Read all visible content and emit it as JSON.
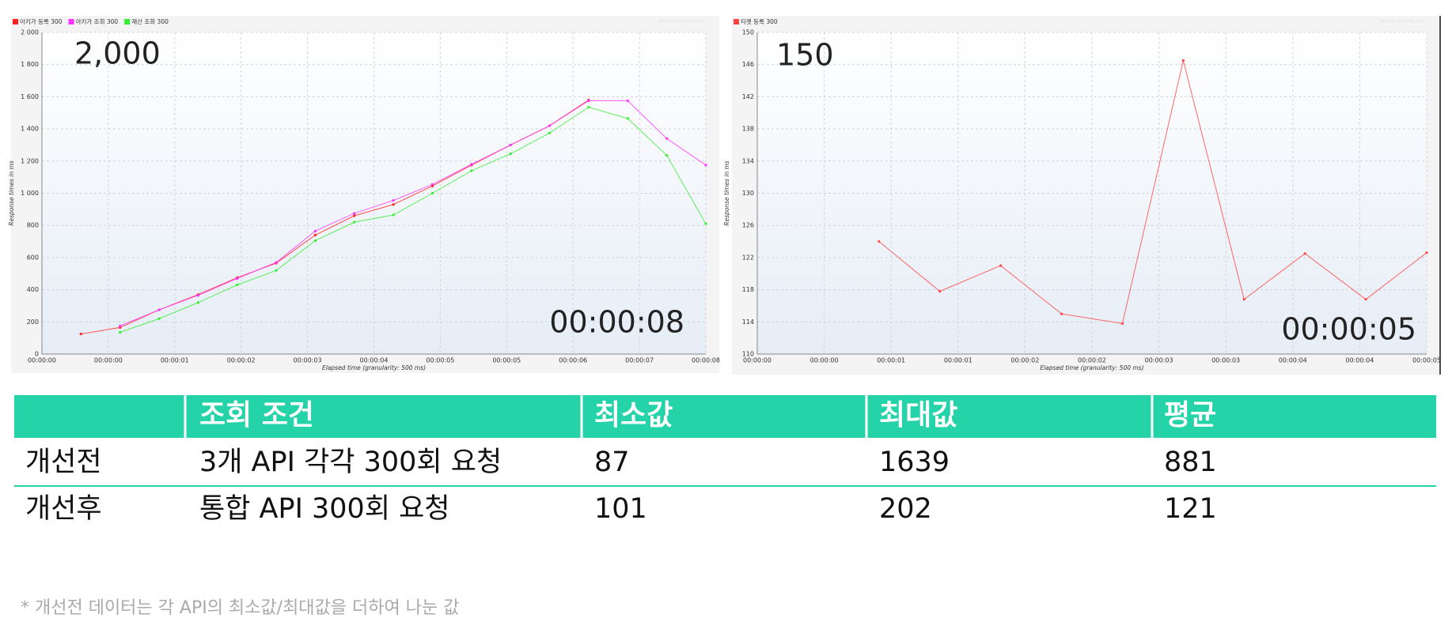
{
  "chart_data": [
    {
      "type": "line",
      "x_label": "Elapsed time (granularity: 500 ms)",
      "y_label": "Response times in ms",
      "watermark": "jmeter-plugins.org",
      "annotations": [
        "2,000",
        "00:00:08"
      ],
      "x": [
        0.5,
        1.0,
        1.5,
        2.0,
        2.5,
        3.0,
        3.5,
        4.0,
        4.5,
        5.0,
        5.5,
        6.0,
        6.5,
        7.0,
        7.5,
        8.0,
        8.5
      ],
      "xlim": [
        0,
        8.5
      ],
      "xticks": [
        {
          "value": 0,
          "label": "00:00:00"
        },
        {
          "value": 0.85,
          "label": "00:00:00"
        },
        {
          "value": 1.7,
          "label": "00:00:01"
        },
        {
          "value": 2.55,
          "label": "00:00:02"
        },
        {
          "value": 3.4,
          "label": "00:00:03"
        },
        {
          "value": 4.25,
          "label": "00:00:04"
        },
        {
          "value": 5.1,
          "label": "00:00:05"
        },
        {
          "value": 5.95,
          "label": "00:00:05"
        },
        {
          "value": 6.8,
          "label": "00:00:06"
        },
        {
          "value": 7.65,
          "label": "00:00:07"
        },
        {
          "value": 8.5,
          "label": "00:00:08"
        }
      ],
      "ylim": [
        0,
        2000
      ],
      "yticks": [
        0,
        200,
        400,
        600,
        800,
        {
          "value": 1000,
          "label": "1 000"
        },
        {
          "value": 1200,
          "label": "1 200"
        },
        {
          "value": 1400,
          "label": "1 400"
        },
        {
          "value": 1600,
          "label": "1 600"
        },
        {
          "value": 1800,
          "label": "1 800"
        },
        {
          "value": 2000,
          "label": "2 000"
        }
      ],
      "grid": true,
      "series": [
        {
          "name": "아키가 등록 300",
          "color": "#ff2020",
          "values": [
            125,
            165,
            275,
            370,
            475,
            565,
            740,
            860,
            930,
            1045,
            1175,
            1300,
            1420,
            1580,
            null,
            null,
            null
          ]
        },
        {
          "name": "아키가 조회 300",
          "color": "#ff33ff",
          "values": [
            null,
            175,
            275,
            365,
            470,
            570,
            765,
            875,
            955,
            1055,
            1180,
            1300,
            1420,
            1575,
            1575,
            1340,
            1175
          ]
        },
        {
          "name": "재산 조회 300",
          "color": "#33ee33",
          "values": [
            null,
            135,
            220,
            320,
            430,
            520,
            705,
            820,
            865,
            1000,
            1140,
            1245,
            1375,
            1535,
            1465,
            1235,
            810
          ]
        }
      ]
    },
    {
      "type": "line",
      "x_label": "Elapsed time (granularity: 500 ms)",
      "y_label": "Response times in ms",
      "watermark": "jmeter-plugins.org",
      "annotations": [
        "150",
        "00:00:05"
      ],
      "x": [
        1.0,
        1.5,
        2.0,
        2.5,
        3.0,
        3.5,
        4.0,
        4.5,
        5.0,
        5.5
      ],
      "xlim": [
        0,
        5.5
      ],
      "xticks": [
        {
          "value": 0,
          "label": "00:00:00"
        },
        {
          "value": 0.55,
          "label": "00:00:00"
        },
        {
          "value": 1.1,
          "label": "00:00:01"
        },
        {
          "value": 1.65,
          "label": "00:00:01"
        },
        {
          "value": 2.2,
          "label": "00:00:02"
        },
        {
          "value": 2.75,
          "label": "00:00:02"
        },
        {
          "value": 3.3,
          "label": "00:00:03"
        },
        {
          "value": 3.85,
          "label": "00:00:03"
        },
        {
          "value": 4.4,
          "label": "00:00:04"
        },
        {
          "value": 4.95,
          "label": "00:00:04"
        },
        {
          "value": 5.5,
          "label": "00:00:05"
        }
      ],
      "ylim": [
        110,
        150
      ],
      "yticks": [
        110,
        114,
        118,
        122,
        126,
        130,
        134,
        138,
        142,
        146,
        150
      ],
      "grid": true,
      "series": [
        {
          "name": "티켓 등록 300",
          "color": "#ff4444",
          "values": [
            124,
            117.8,
            121,
            115,
            113.8,
            146.5,
            116.8,
            122.5,
            116.8,
            122.6
          ]
        }
      ]
    }
  ],
  "table": {
    "header": [
      "조회 조건",
      "최소값",
      "최대값",
      "평균"
    ],
    "rows": [
      [
        "개선전",
        "3개 API 각각 300회 요청",
        87,
        1639,
        881
      ],
      [
        "개선후",
        "통합 API 300회 요청",
        101,
        202,
        121
      ]
    ]
  },
  "footnote": "* 개선전 데이터는 각 API의 최소값/최대값을 더하여 나눈 값"
}
